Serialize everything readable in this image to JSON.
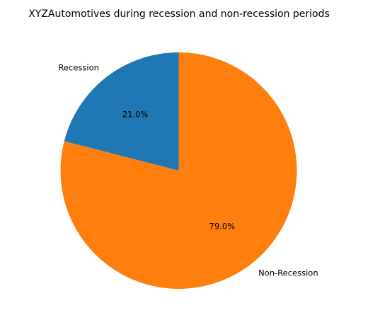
{
  "chart_data": {
    "type": "pie",
    "title": "XYZAutomotives during recession and non-recession periods",
    "labels": [
      "Recession",
      "Non-Recession"
    ],
    "values": [
      21.0,
      79.0
    ],
    "percent_labels": [
      "21.0%",
      "79.0%"
    ],
    "colors": [
      "#1f77b4",
      "#ff7f0e"
    ],
    "start_angle_deg": 90,
    "direction": "counterclockwise"
  }
}
